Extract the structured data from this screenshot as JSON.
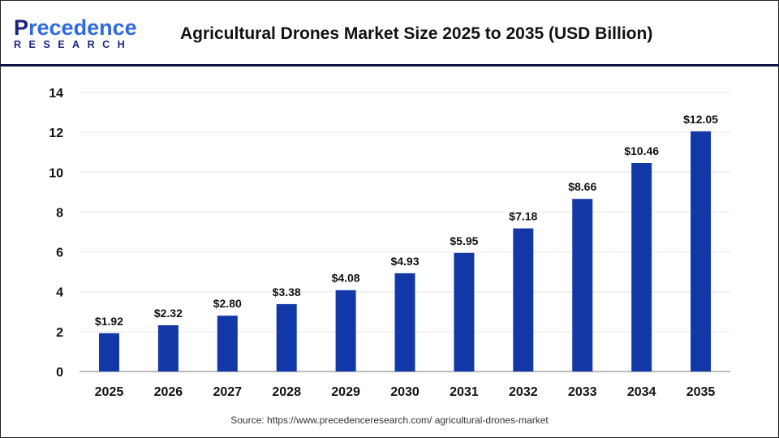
{
  "logo": {
    "line1": "Precedence",
    "line2": "RESEARCH"
  },
  "header": {
    "title": "Agricultural Drones Market Size 2025 to 2035 (USD Billion)"
  },
  "footer": {
    "source": "Source: https://www.precedenceresearch.com/ agricultural-drones-market"
  },
  "colors": {
    "bar": "#1238a8",
    "header_line": "#0d1440"
  },
  "chart_data": {
    "type": "bar",
    "title": "Agricultural Drones Market Size 2025 to 2035 (USD Billion)",
    "categories": [
      "2025",
      "2026",
      "2027",
      "2028",
      "2029",
      "2030",
      "2031",
      "2032",
      "2033",
      "2034",
      "2035"
    ],
    "values": [
      1.92,
      2.32,
      2.8,
      3.38,
      4.08,
      4.93,
      5.95,
      7.18,
      8.66,
      10.46,
      12.05
    ],
    "data_labels": [
      "$1.92",
      "$2.32",
      "$2.80",
      "$3.38",
      "$4.08",
      "$4.93",
      "$5.95",
      "$7.18",
      "$8.66",
      "$10.46",
      "$12.05"
    ],
    "yticks": [
      0,
      2,
      4,
      6,
      8,
      10,
      12,
      14
    ],
    "ylim": [
      0,
      14
    ],
    "grid": true,
    "xlabel": "",
    "ylabel": ""
  }
}
